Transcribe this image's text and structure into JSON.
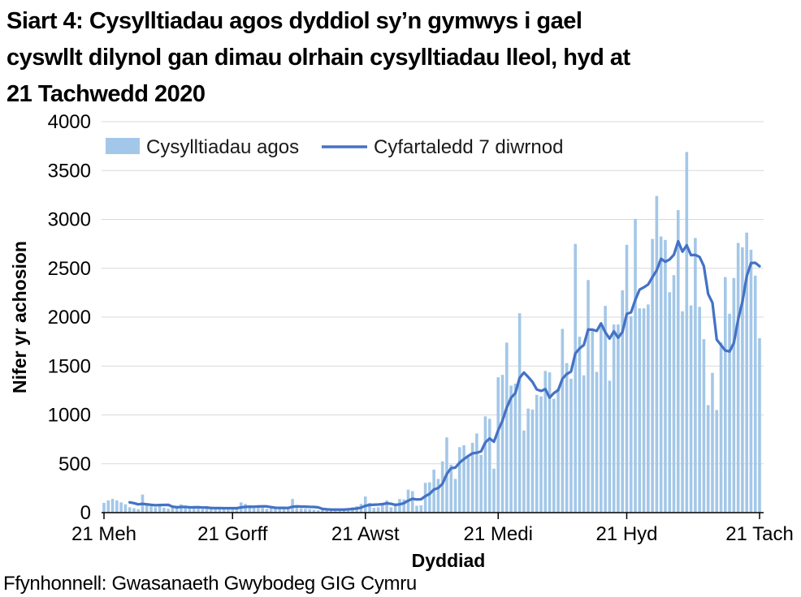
{
  "title": "Siart 4: Cysylltiadau agos dyddiol sy’n gymwys i gael cyswllt dilynol gan dimau olrhain cysylltiadau lleol, hyd at 21 Tachwedd 2020",
  "title_lines": [
    "Siart 4: Cysylltiadau agos dyddiol sy’n gymwys i gael",
    "cyswllt dilynol gan dimau olrhain cysylltiadau lleol, hyd at",
    "21 Tachwedd 2020"
  ],
  "footer": "Ffynhonnell: Gwasanaeth Gwybodeg GIG Cymru",
  "legend": {
    "bars_label": "Cysylltiadau agos",
    "line_label": "Cyfartaledd 7 diwrnod"
  },
  "colors": {
    "bars": "#A3C7E8",
    "line": "#4472C4",
    "grid": "#D9D9D9",
    "axis": "#000000"
  },
  "chart_data": {
    "type": "bar",
    "title": "Cysylltiadau agos dyddiol",
    "xlabel": "Dyddiad",
    "ylabel": "Nifer yr achosion",
    "ylim": [
      0,
      4000
    ],
    "y_tick_step": 500,
    "grid": true,
    "legend_position": "top-left-inside",
    "x_start_date": "21 Mehefin 2020",
    "x_end_date": "21 Tachwedd 2020",
    "x_tick_labels": [
      "21 Meh",
      "21 Gorff",
      "21 Awst",
      "21 Medi",
      "21 Hyd",
      "21 Tach"
    ],
    "x_tick_day_indices": [
      0,
      30,
      61,
      92,
      122,
      153
    ],
    "series": [
      {
        "name": "Cysylltiadau agos",
        "type": "bar",
        "color": "#A3C7E8",
        "values": [
          100,
          125,
          140,
          125,
          105,
          85,
          55,
          45,
          35,
          185,
          90,
          65,
          55,
          70,
          50,
          40,
          60,
          45,
          85,
          60,
          40,
          55,
          45,
          35,
          50,
          45,
          55,
          40,
          50,
          45,
          35,
          50,
          105,
          90,
          55,
          45,
          60,
          50,
          40,
          55,
          45,
          50,
          40,
          55,
          140,
          60,
          45,
          40,
          35,
          30,
          25,
          35,
          30,
          25,
          35,
          40,
          30,
          45,
          55,
          65,
          90,
          165,
          100,
          50,
          55,
          85,
          125,
          55,
          85,
          140,
          135,
          235,
          220,
          70,
          75,
          305,
          310,
          440,
          345,
          525,
          770,
          490,
          345,
          670,
          690,
          565,
          715,
          810,
          590,
          985,
          960,
          450,
          1385,
          1410,
          1740,
          1300,
          1320,
          2040,
          840,
          1065,
          1055,
          1205,
          1190,
          1450,
          1435,
          1165,
          1270,
          1880,
          1530,
          1370,
          2750,
          1800,
          1405,
          2380,
          1870,
          1440,
          1905,
          2115,
          1350,
          1925,
          1925,
          2275,
          2740,
          2010,
          3005,
          2090,
          2090,
          2130,
          2800,
          3240,
          2825,
          2790,
          2255,
          2430,
          3095,
          2060,
          3690,
          2120,
          2810,
          2105,
          1775,
          1100,
          1430,
          1050,
          1740,
          2410,
          2035,
          2400,
          2760,
          2715,
          2865,
          2690,
          2425,
          1785
        ]
      },
      {
        "name": "Cyfartaledd 7 diwrnod",
        "type": "line",
        "color": "#4472C4",
        "derived": "rolling-7-day-mean-of-bar-series"
      }
    ]
  }
}
